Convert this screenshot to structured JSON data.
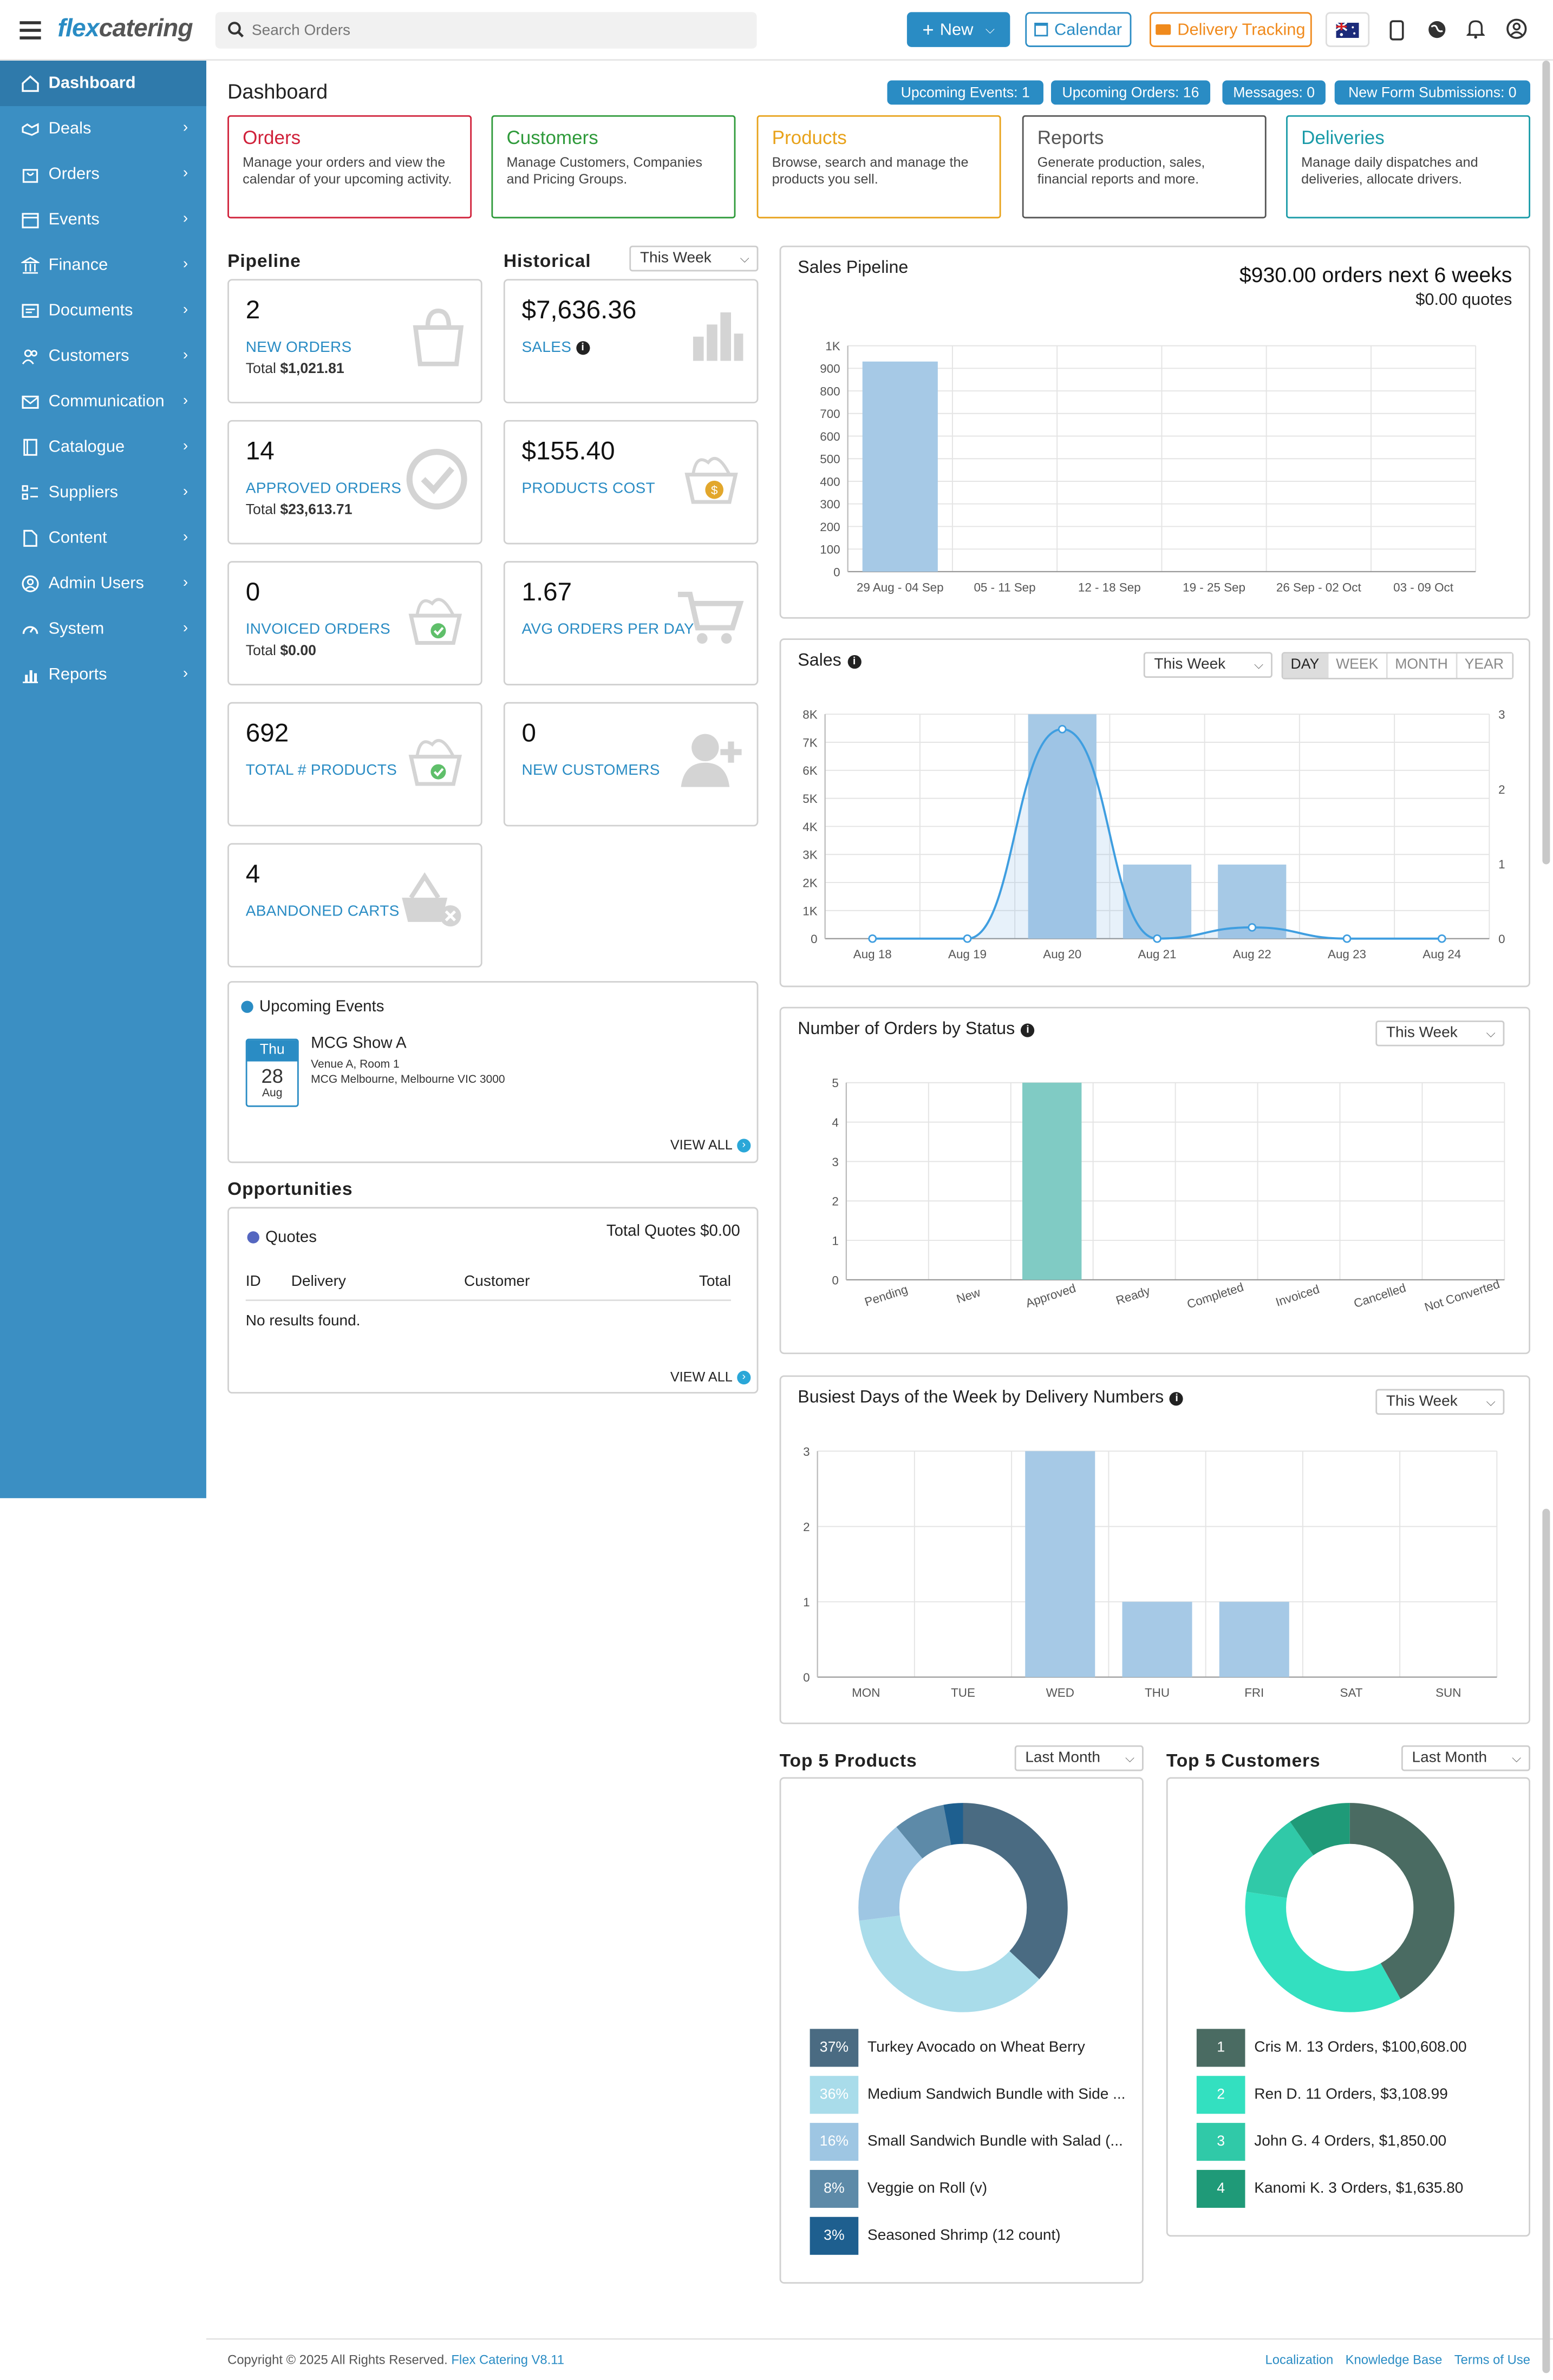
{
  "app": {
    "brand_left": "flex",
    "brand_right": "catering"
  },
  "search": {
    "placeholder": "Search Orders"
  },
  "topbar": {
    "new_label": "New",
    "calendar_label": "Calendar",
    "delivery_label": "Delivery Tracking"
  },
  "sidebar": {
    "items": [
      {
        "label": "Dashboard",
        "icon": "home-icon",
        "active": true
      },
      {
        "label": "Deals",
        "icon": "handshake-icon"
      },
      {
        "label": "Orders",
        "icon": "bag-icon"
      },
      {
        "label": "Events",
        "icon": "calendar-icon"
      },
      {
        "label": "Finance",
        "icon": "bank-icon"
      },
      {
        "label": "Documents",
        "icon": "document-icon"
      },
      {
        "label": "Customers",
        "icon": "users-icon"
      },
      {
        "label": "Communication",
        "icon": "envelope-icon"
      },
      {
        "label": "Catalogue",
        "icon": "book-icon"
      },
      {
        "label": "Suppliers",
        "icon": "list-icon"
      },
      {
        "label": "Content",
        "icon": "file-icon"
      },
      {
        "label": "Admin Users",
        "icon": "user-circle-icon"
      },
      {
        "label": "System",
        "icon": "gauge-icon"
      },
      {
        "label": "Reports",
        "icon": "bar-chart-icon"
      }
    ]
  },
  "page": {
    "title": "Dashboard"
  },
  "badges": [
    "Upcoming Events: 1",
    "Upcoming Orders: 16",
    "Messages: 0",
    "New Form Submissions: 0"
  ],
  "quicklinks": [
    {
      "title": "Orders",
      "desc": "Manage your orders and view the calendar of your upcoming activity.",
      "color": "#d0213a"
    },
    {
      "title": "Customers",
      "desc": "Manage Customers, Companies and Pricing Groups.",
      "color": "#2e9a3a"
    },
    {
      "title": "Products",
      "desc": "Browse, search and manage the products you sell.",
      "color": "#e8a21a"
    },
    {
      "title": "Reports",
      "desc": "Generate production, sales, financial reports and more.",
      "color": "#555555"
    },
    {
      "title": "Deliveries",
      "desc": "Manage daily dispatches and deliveries, allocate drivers.",
      "color": "#1a9ba8"
    }
  ],
  "pipeline": {
    "heading": "Pipeline",
    "cards": [
      {
        "num": "2",
        "label": "NEW ORDERS",
        "sub_prefix": "Total ",
        "sub_value": "$1,021.81"
      },
      {
        "num": "14",
        "label": "APPROVED ORDERS",
        "sub_prefix": "Total ",
        "sub_value": "$23,613.71"
      },
      {
        "num": "0",
        "label": "INVOICED ORDERS",
        "sub_prefix": "Total ",
        "sub_value": "$0.00"
      },
      {
        "num": "692",
        "label": "TOTAL # PRODUCTS"
      },
      {
        "num": "4",
        "label": "ABANDONED CARTS"
      }
    ]
  },
  "historical": {
    "heading": "Historical",
    "filter": "This Week",
    "cards": [
      {
        "num": "$7,636.36",
        "label": "SALES"
      },
      {
        "num": "$155.40",
        "label": "PRODUCTS COST"
      },
      {
        "num": "1.67",
        "label": "AVG ORDERS PER DAY"
      },
      {
        "num": "0",
        "label": "NEW CUSTOMERS"
      }
    ]
  },
  "events": {
    "title": "Upcoming Events",
    "day": "Thu",
    "date": "28",
    "month": "Aug",
    "name": "MCG Show A",
    "venue": "Venue A, Room 1",
    "address": "MCG Melbourne, Melbourne VIC 3000",
    "view_all": "VIEW ALL"
  },
  "opportunities": {
    "heading": "Opportunities",
    "title": "Quotes",
    "total": "Total Quotes $0.00",
    "columns": [
      "ID",
      "Delivery",
      "Customer",
      "Total"
    ],
    "empty": "No results found.",
    "view_all": "VIEW ALL"
  },
  "sales_pipeline": {
    "title": "Sales Pipeline",
    "headline": "$930.00 orders next 6 weeks",
    "subline": "$0.00 quotes"
  },
  "sales": {
    "title": "Sales",
    "filter": "This Week",
    "periods": [
      "DAY",
      "WEEK",
      "MONTH",
      "YEAR"
    ],
    "active_period": "DAY"
  },
  "orders_status": {
    "title": "Number of Orders by Status",
    "filter": "This Week"
  },
  "busiest": {
    "title": "Busiest Days of the Week by Delivery Numbers",
    "filter": "This Week"
  },
  "top_products": {
    "title": "Top 5 Products",
    "filter": "Last Month",
    "items": [
      {
        "pct": "37%",
        "label": "Turkey Avocado on Wheat Berry",
        "color": "#4a6b82"
      },
      {
        "pct": "36%",
        "label": "Medium Sandwich Bundle with Side ...",
        "color": "#a9dcea"
      },
      {
        "pct": "16%",
        "label": "Small Sandwich Bundle with Salad (...",
        "color": "#9ec6e3"
      },
      {
        "pct": "8%",
        "label": "Veggie on Roll (v)",
        "color": "#5d8aa8"
      },
      {
        "pct": "3%",
        "label": "Seasoned Shrimp (12 count)",
        "color": "#1e5f8f"
      }
    ]
  },
  "top_customers": {
    "title": "Top 5 Customers",
    "filter": "Last Month",
    "items": [
      {
        "rank": "1",
        "label": "Cris M. 13 Orders, $100,608.00",
        "color": "#4a6b62"
      },
      {
        "rank": "2",
        "label": "Ren D. 11 Orders, $3,108.99",
        "color": "#33e0c0"
      },
      {
        "rank": "3",
        "label": "John G. 4 Orders, $1,850.00",
        "color": "#30c9a8"
      },
      {
        "rank": "4",
        "label": "Kanomi K. 3 Orders, $1,635.80",
        "color": "#1f9a78"
      }
    ]
  },
  "footer": {
    "copyright": "Copyright © 2025 All Rights Reserved.",
    "product": "Flex Catering V8.11",
    "links": [
      "Localization",
      "Knowledge Base",
      "Terms of Use"
    ]
  },
  "chart_data": [
    {
      "type": "bar",
      "title": "Sales Pipeline",
      "categories": [
        "29 Aug - 04 Sep",
        "05 - 11 Sep",
        "12 - 18 Sep",
        "19 - 25 Sep",
        "26 Sep - 02 Oct",
        "03 - 09 Oct"
      ],
      "values": [
        930,
        0,
        0,
        0,
        0,
        0
      ],
      "ylim": [
        0,
        1000
      ],
      "yticks": [
        "0",
        "100",
        "200",
        "300",
        "400",
        "500",
        "600",
        "700",
        "800",
        "900",
        "1K"
      ]
    },
    {
      "type": "bar",
      "title": "Sales",
      "categories": [
        "Aug 18",
        "Aug 19",
        "Aug 20",
        "Aug 21",
        "Aug 22",
        "Aug 23",
        "Aug 24"
      ],
      "series": [
        {
          "type": "bar",
          "values": [
            0,
            0,
            8000,
            2640,
            2640,
            0,
            0
          ]
        },
        {
          "type": "line",
          "values": [
            0,
            0,
            2.8,
            0,
            0.15,
            0,
            0
          ]
        }
      ],
      "ylim": [
        0,
        8000
      ],
      "y2lim": [
        0,
        3
      ],
      "yticks": [
        "0",
        "1K",
        "2K",
        "3K",
        "4K",
        "5K",
        "6K",
        "7K",
        "8K"
      ],
      "y2ticks": [
        "0",
        "1",
        "2",
        "3"
      ]
    },
    {
      "type": "bar",
      "title": "Number of Orders by Status",
      "categories": [
        "Pending",
        "New",
        "Approved",
        "Ready",
        "Completed",
        "Invoiced",
        "Cancelled",
        "Not Converted"
      ],
      "values": [
        0,
        0,
        5,
        0,
        0,
        0,
        0,
        0
      ],
      "ylim": [
        0,
        5
      ],
      "yticks": [
        "0",
        "1",
        "2",
        "3",
        "4",
        "5"
      ]
    },
    {
      "type": "bar",
      "title": "Busiest Days of the Week by Delivery Numbers",
      "categories": [
        "MON",
        "TUE",
        "WED",
        "THU",
        "FRI",
        "SAT",
        "SUN"
      ],
      "values": [
        0,
        0,
        3,
        1,
        1,
        0,
        0
      ],
      "ylim": [
        0,
        3
      ],
      "yticks": [
        "0",
        "1",
        "2",
        "3"
      ]
    },
    {
      "type": "pie",
      "title": "Top 5 Products",
      "values": [
        37,
        36,
        16,
        8,
        3
      ],
      "colors": [
        "#4a6b82",
        "#a9dcea",
        "#9ec6e3",
        "#5d8aa8",
        "#1e5f8f"
      ]
    },
    {
      "type": "pie",
      "title": "Top 5 Customers",
      "values": [
        13,
        11,
        4,
        3
      ],
      "colors": [
        "#4a6b62",
        "#33e0c0",
        "#30c9a8",
        "#1f9a78"
      ]
    }
  ]
}
